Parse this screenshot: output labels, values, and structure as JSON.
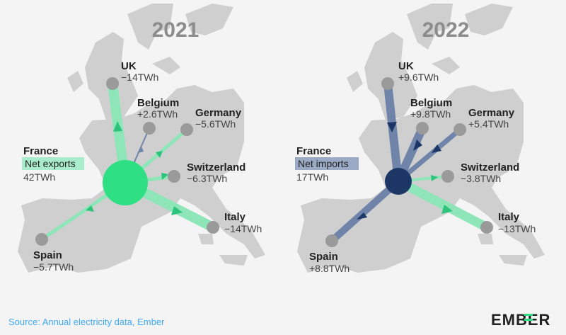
{
  "colors": {
    "background": "#f4f4f4",
    "land": "#cfcfcf",
    "export_green": "#3dd68c",
    "export_green_light": "#8ee6b8",
    "import_blue": "#6f84a8",
    "import_navy": "#1c3766",
    "node_gray": "#9a9a9a",
    "net_exports_tag": "#a8eccb",
    "net_imports_tag": "#9aa9c4"
  },
  "panels": [
    {
      "year": "2021",
      "hub": {
        "name": "France",
        "label": "Net exports",
        "value": "42TWh",
        "direction": "export"
      },
      "flows": [
        {
          "country": "UK",
          "value": "−14TWh",
          "twh": -14
        },
        {
          "country": "Belgium",
          "value": "+2.6TWh",
          "twh": 2.6
        },
        {
          "country": "Germany",
          "value": "−5.6TWh",
          "twh": -5.6
        },
        {
          "country": "Switzerland",
          "value": "−6.3TWh",
          "twh": -6.3
        },
        {
          "country": "Italy",
          "value": "−14TWh",
          "twh": -14
        },
        {
          "country": "Spain",
          "value": "−5.7TWh",
          "twh": -5.7
        }
      ]
    },
    {
      "year": "2022",
      "hub": {
        "name": "France",
        "label": "Net imports",
        "value": "17TWh",
        "direction": "import"
      },
      "flows": [
        {
          "country": "UK",
          "value": "+9.6TWh",
          "twh": 9.6
        },
        {
          "country": "Belgium",
          "value": "+9.8TWh",
          "twh": 9.8
        },
        {
          "country": "Germany",
          "value": "+5.4TWh",
          "twh": 5.4
        },
        {
          "country": "Switzerland",
          "value": "−3.8TWh",
          "twh": -3.8
        },
        {
          "country": "Italy",
          "value": "−13TWh",
          "twh": -13
        },
        {
          "country": "Spain",
          "value": "+8.8TWh",
          "twh": 8.8
        }
      ]
    }
  ],
  "footer": {
    "source": "Source: Annual electricity data, Ember",
    "logo": "EMBER"
  }
}
